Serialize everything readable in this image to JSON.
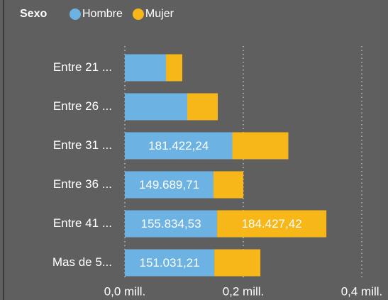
{
  "chart_data": {
    "type": "stacked-barh",
    "legend_title": "Sexo",
    "categories": [
      "Entre 21 ...",
      "Entre 26 ...",
      "Entre 31 ...",
      "Entre 36 ...",
      "Entre 41 ...",
      "Mas de 5..."
    ],
    "series": [
      {
        "name": "Hombre",
        "color": "#6cb2e2",
        "values": [
          69500,
          105400,
          181422.24,
          149689.71,
          155834.53,
          151031.21
        ],
        "value_labels": [
          null,
          null,
          "181.422,24",
          "149.689,71",
          "155.834,53",
          "151.031,21"
        ]
      },
      {
        "name": "Mujer",
        "color": "#f8b719",
        "values": [
          27500,
          51500,
          94600,
          50300,
          184427.42,
          77800
        ],
        "value_labels": [
          null,
          null,
          null,
          null,
          "184.427,42",
          null
        ]
      }
    ],
    "xlim": [
      0,
      436000
    ],
    "xticks": [
      {
        "value": 0,
        "label": "0,0 mill."
      },
      {
        "value": 200000,
        "label": "0,2 mill."
      },
      {
        "value": 400000,
        "label": "0,4 mill."
      }
    ],
    "grid": true
  }
}
